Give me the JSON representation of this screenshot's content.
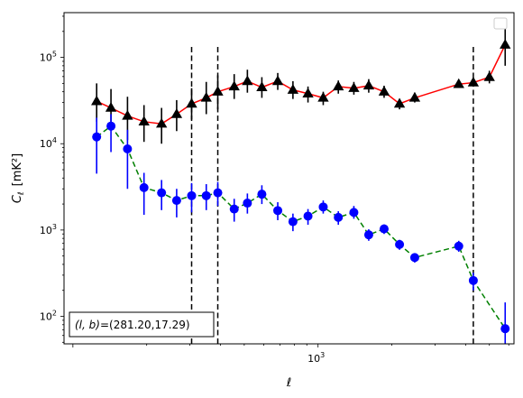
{
  "chart_data": {
    "type": "scatter",
    "xlabel": "ℓ",
    "ylabel_main": "C",
    "ylabel_sub": "ℓ",
    "ylabel_unit": "[mK²]",
    "xscale": "log",
    "yscale": "log",
    "xlim": [
      92,
      6300
    ],
    "ylim": [
      48,
      330000
    ],
    "x_tick_labels": [
      {
        "value": 1000,
        "base": "10",
        "exp": "3"
      }
    ],
    "y_tick_labels": [
      {
        "value": 100,
        "base": "10",
        "exp": "2"
      },
      {
        "value": 1000,
        "base": "10",
        "exp": "3"
      },
      {
        "value": 10000,
        "base": "10",
        "exp": "4"
      },
      {
        "value": 100000,
        "base": "10",
        "exp": "5"
      }
    ],
    "legend": "top-right",
    "annotation": "(l, b)=(281.20,17.29)",
    "annotation_parts": {
      "lb": "(l, b)",
      "value": "=(281.20,17.29)"
    },
    "vlines": [
      {
        "x": 305,
        "ymin": 48,
        "ymax": 135000
      },
      {
        "x": 390,
        "ymin": 48,
        "ymax": 135000
      },
      {
        "x": 4300,
        "ymin": 48,
        "ymax": 135000
      }
    ],
    "series": [
      {
        "marker": "triangle",
        "marker_color": "#000000",
        "line_color": "#ff0000",
        "line_style": "solid",
        "points": [
          {
            "x": 125,
            "y": 31000,
            "lo": 18000,
            "hi": 50000
          },
          {
            "x": 143,
            "y": 26000,
            "lo": 15000,
            "hi": 43000
          },
          {
            "x": 167,
            "y": 21000,
            "lo": 11000,
            "hi": 35000
          },
          {
            "x": 195,
            "y": 18000,
            "lo": 10500,
            "hi": 28000
          },
          {
            "x": 230,
            "y": 17000,
            "lo": 10000,
            "hi": 26000
          },
          {
            "x": 265,
            "y": 22000,
            "lo": 14000,
            "hi": 32000
          },
          {
            "x": 305,
            "y": 29000,
            "lo": 19000,
            "hi": 44000
          },
          {
            "x": 350,
            "y": 34000,
            "lo": 22000,
            "hi": 52000
          },
          {
            "x": 390,
            "y": 40000,
            "lo": 25000,
            "hi": 62000
          },
          {
            "x": 455,
            "y": 46000,
            "lo": 33000,
            "hi": 64000
          },
          {
            "x": 515,
            "y": 53000,
            "lo": 39000,
            "hi": 72000
          },
          {
            "x": 590,
            "y": 45000,
            "lo": 34000,
            "hi": 59000
          },
          {
            "x": 685,
            "y": 53000,
            "lo": 42000,
            "hi": 66000
          },
          {
            "x": 790,
            "y": 42000,
            "lo": 33000,
            "hi": 53000
          },
          {
            "x": 910,
            "y": 38000,
            "lo": 30000,
            "hi": 46000
          },
          {
            "x": 1050,
            "y": 34000,
            "lo": 28000,
            "hi": 40000
          },
          {
            "x": 1210,
            "y": 46000,
            "lo": 38000,
            "hi": 54000
          },
          {
            "x": 1400,
            "y": 44000,
            "lo": 37000,
            "hi": 52000
          },
          {
            "x": 1610,
            "y": 47000,
            "lo": 39000,
            "hi": 56000
          },
          {
            "x": 1860,
            "y": 40000,
            "lo": 34000,
            "hi": 47000
          },
          {
            "x": 2150,
            "y": 29000,
            "lo": 25000,
            "hi": 33000
          },
          {
            "x": 2480,
            "y": 34000,
            "lo": 30000,
            "hi": 39000
          },
          {
            "x": 3750,
            "y": 49000,
            "lo": 45000,
            "hi": 54000
          },
          {
            "x": 4300,
            "y": 51000,
            "lo": 46000,
            "hi": 58000
          },
          {
            "x": 5000,
            "y": 59000,
            "lo": 50000,
            "hi": 70000
          },
          {
            "x": 5800,
            "y": 140000,
            "lo": 80000,
            "hi": 220000
          }
        ]
      },
      {
        "marker": "circle",
        "marker_color": "#0000ff",
        "line_color": "#008000",
        "line_style": "dashed",
        "points": [
          {
            "x": 125,
            "y": 12000,
            "lo": 4500,
            "hi": 20000
          },
          {
            "x": 143,
            "y": 16000,
            "lo": 8000,
            "hi": 22000
          },
          {
            "x": 167,
            "y": 8700,
            "lo": 3000,
            "hi": 14500
          },
          {
            "x": 195,
            "y": 3100,
            "lo": 1500,
            "hi": 4600
          },
          {
            "x": 230,
            "y": 2700,
            "lo": 1700,
            "hi": 3800
          },
          {
            "x": 265,
            "y": 2200,
            "lo": 1400,
            "hi": 3000
          },
          {
            "x": 305,
            "y": 2500,
            "lo": 1600,
            "hi": 3500
          },
          {
            "x": 350,
            "y": 2500,
            "lo": 1700,
            "hi": 3400
          },
          {
            "x": 390,
            "y": 2700,
            "lo": 1900,
            "hi": 3600
          },
          {
            "x": 455,
            "y": 1750,
            "lo": 1250,
            "hi": 2300
          },
          {
            "x": 515,
            "y": 2050,
            "lo": 1550,
            "hi": 2650
          },
          {
            "x": 590,
            "y": 2600,
            "lo": 2000,
            "hi": 3300
          },
          {
            "x": 685,
            "y": 1680,
            "lo": 1300,
            "hi": 2100
          },
          {
            "x": 790,
            "y": 1250,
            "lo": 970,
            "hi": 1550
          },
          {
            "x": 910,
            "y": 1450,
            "lo": 1150,
            "hi": 1750
          },
          {
            "x": 1050,
            "y": 1850,
            "lo": 1550,
            "hi": 2200
          },
          {
            "x": 1210,
            "y": 1400,
            "lo": 1150,
            "hi": 1650
          },
          {
            "x": 1400,
            "y": 1600,
            "lo": 1350,
            "hi": 1900
          },
          {
            "x": 1610,
            "y": 880,
            "lo": 750,
            "hi": 1020
          },
          {
            "x": 1860,
            "y": 1030,
            "lo": 900,
            "hi": 1160
          },
          {
            "x": 2150,
            "y": 680,
            "lo": 590,
            "hi": 770
          },
          {
            "x": 2480,
            "y": 480,
            "lo": 420,
            "hi": 540
          },
          {
            "x": 3750,
            "y": 650,
            "lo": 560,
            "hi": 750
          },
          {
            "x": 4300,
            "y": 260,
            "lo": 200,
            "hi": 320
          },
          {
            "x": 5800,
            "y": 72,
            "lo": 48,
            "hi": 145
          }
        ]
      }
    ]
  }
}
